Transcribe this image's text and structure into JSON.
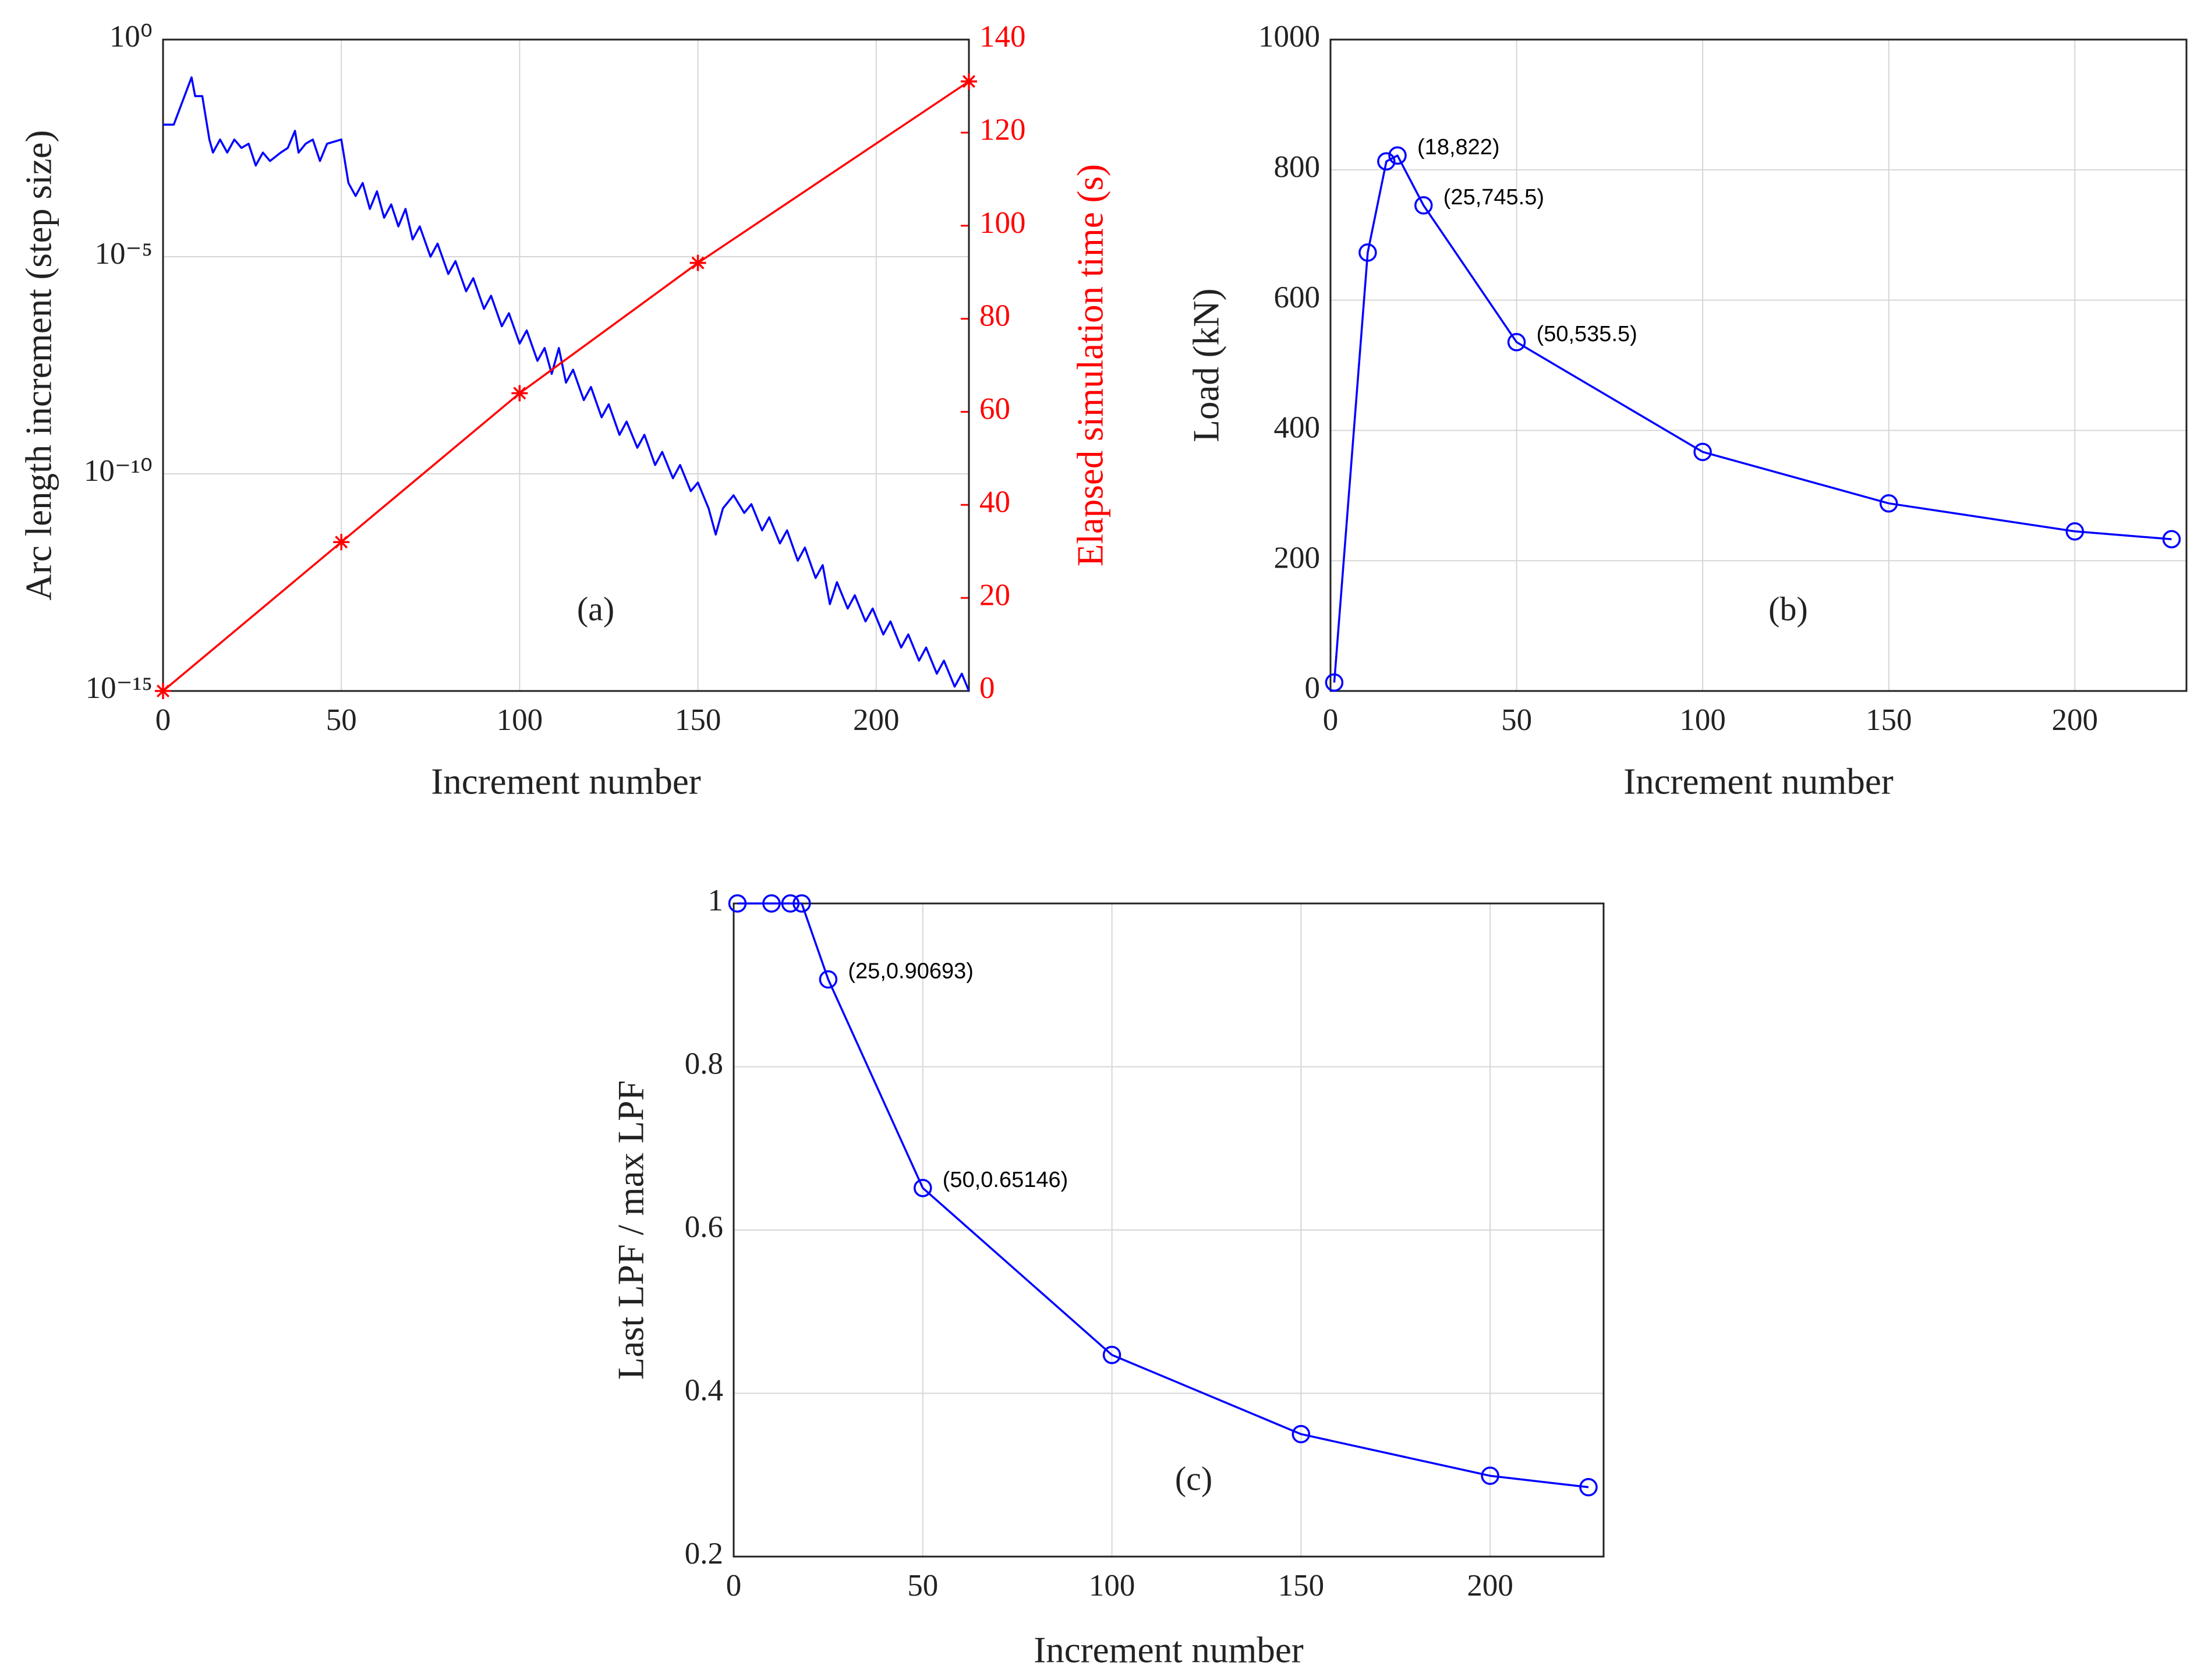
{
  "chart_data": [
    {
      "type": "line",
      "panel_label": "(a)",
      "xlabel": "Increment number",
      "ylabel": "Arc length increment (step size)",
      "y2label": "Elapsed simulation time (s)",
      "xlim": [
        0,
        226
      ],
      "xticks": [
        0,
        50,
        100,
        150,
        200
      ],
      "ylim": [
        1e-15,
        1
      ],
      "ylog": true,
      "yticks": [
        {
          "value": 1e-15,
          "label": "10⁻¹⁵"
        },
        {
          "value": 1e-10,
          "label": "10⁻¹⁰"
        },
        {
          "value": 1e-05,
          "label": "10⁻⁵"
        },
        {
          "value": 1,
          "label": "10⁰"
        }
      ],
      "y2lim": [
        0,
        140
      ],
      "y2ticks": [
        0,
        20,
        40,
        60,
        80,
        100,
        120,
        140
      ],
      "grid": true,
      "series": [
        {
          "color": "#0000ff",
          "marker": "none",
          "x": [
            0,
            3,
            8,
            9,
            11,
            13,
            14,
            16,
            18,
            20,
            22,
            24,
            26,
            28,
            30,
            33,
            35,
            37,
            38,
            40,
            42,
            44,
            46,
            50,
            52,
            54,
            56,
            58,
            60,
            62,
            64,
            66,
            68,
            70,
            72,
            75,
            77,
            80,
            82,
            85,
            87,
            90,
            92,
            95,
            97,
            100,
            102,
            105,
            107,
            109,
            111,
            113,
            115,
            118,
            120,
            123,
            125,
            128,
            130,
            133,
            135,
            138,
            140,
            143,
            145,
            148,
            150,
            153,
            155,
            157,
            160,
            163,
            165,
            168,
            170,
            173,
            175,
            178,
            180,
            183,
            185,
            187,
            189,
            192,
            194,
            197,
            199,
            202,
            204,
            207,
            209,
            212,
            214,
            217,
            219,
            222,
            224,
            226
          ],
          "values": [
            0.011,
            0.011,
            0.135,
            0.05,
            0.05,
            0.005,
            0.0025,
            0.005,
            0.0025,
            0.005,
            0.0032,
            0.004,
            0.00126,
            0.0025,
            0.0016,
            0.0025,
            0.0032,
            0.0079,
            0.0025,
            0.004,
            0.005,
            0.0016,
            0.004,
            0.005,
            0.0005,
            0.00025,
            0.0005,
            0.000126,
            0.00032,
            7.9e-05,
            0.00016,
            5e-05,
            0.000126,
            2.5e-05,
            5e-05,
            1e-05,
            2e-05,
            4e-06,
            7.9e-06,
            1.6e-06,
            3.2e-06,
            6.3e-07,
            1.26e-06,
            2.5e-07,
            5e-07,
            1e-07,
            2e-07,
            4e-08,
            7.9e-08,
            2e-08,
            7.9e-08,
            1.26e-08,
            2.5e-08,
            5e-09,
            1e-08,
            2e-09,
            4e-09,
            7.9e-10,
            1.6e-09,
            4e-10,
            7.9e-10,
            1.6e-10,
            3.2e-10,
            7.9e-11,
            1.6e-10,
            4e-11,
            6.3e-11,
            1.6e-11,
            4e-12,
            1.6e-11,
            3.2e-11,
            1.26e-11,
            2e-11,
            5e-12,
            1e-11,
            2.5e-12,
            5e-12,
            1e-12,
            2e-12,
            4e-13,
            7.9e-13,
            1e-13,
            3.2e-13,
            7.9e-14,
            1.6e-13,
            4e-14,
            7.9e-14,
            2e-14,
            4e-14,
            1e-14,
            2e-14,
            5e-15,
            1e-14,
            2.5e-15,
            5e-15,
            1.26e-15,
            2.5e-15,
            1e-15
          ]
        },
        {
          "color": "#ff0000",
          "marker": "star",
          "axis": "y2",
          "x": [
            0,
            50,
            100,
            150,
            226
          ],
          "values": [
            0,
            32,
            64,
            92,
            131
          ]
        }
      ]
    },
    {
      "type": "line",
      "panel_label": "(b)",
      "xlabel": "Increment number",
      "ylabel": "Load (kN)",
      "xlim": [
        0,
        230
      ],
      "xticks": [
        0,
        50,
        100,
        150,
        200
      ],
      "ylim": [
        0,
        1000
      ],
      "yticks": [
        0,
        200,
        400,
        600,
        800,
        1000
      ],
      "grid": true,
      "series": [
        {
          "color": "#0000ff",
          "marker": "circle",
          "x": [
            1,
            10,
            15,
            18,
            25,
            50,
            100,
            150,
            200,
            226
          ],
          "values": [
            13,
            673,
            813,
            822,
            745.5,
            535.5,
            367,
            288,
            245,
            233
          ],
          "value_labels": [
            null,
            null,
            null,
            "(18,822)",
            "(25,745.5)",
            "(50,535.5)",
            null,
            null,
            null,
            null
          ]
        }
      ]
    },
    {
      "type": "line",
      "panel_label": "(c)",
      "xlabel": "Increment number",
      "ylabel": "Last LPF / max LPF",
      "xlim": [
        0,
        230
      ],
      "xticks": [
        0,
        50,
        100,
        150,
        200
      ],
      "ylim": [
        0.2,
        1
      ],
      "yticks": [
        0.2,
        0.4,
        0.6,
        0.8,
        1
      ],
      "grid": true,
      "series": [
        {
          "color": "#0000ff",
          "marker": "circle",
          "x": [
            1,
            10,
            15,
            18,
            25,
            50,
            100,
            150,
            200,
            226
          ],
          "values": [
            1,
            1,
            1,
            1,
            0.90693,
            0.65146,
            0.447,
            0.35,
            0.299,
            0.285
          ],
          "value_labels": [
            null,
            null,
            null,
            null,
            "(25,0.90693)",
            "(50,0.65146)",
            null,
            null,
            null,
            null
          ]
        }
      ]
    }
  ]
}
